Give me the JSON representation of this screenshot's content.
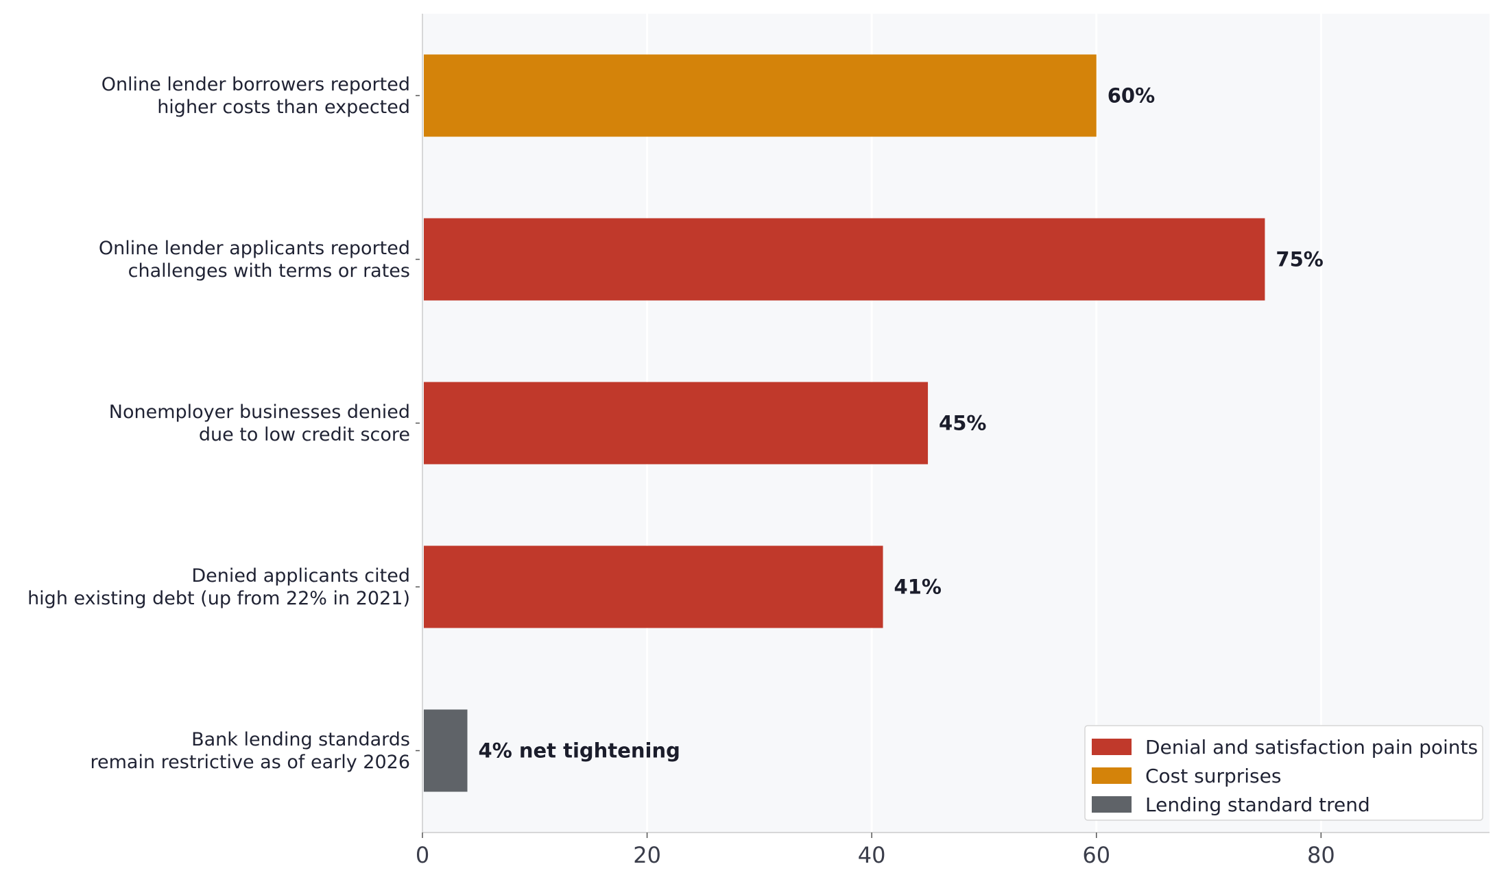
{
  "chart_data": {
    "type": "bar",
    "orientation": "horizontal",
    "categories": [
      [
        "Online lender borrowers reported",
        "higher costs than expected"
      ],
      [
        "Online lender applicants reported",
        "challenges with terms or rates"
      ],
      [
        "Nonemployer businesses denied",
        "due to low credit score"
      ],
      [
        "Denied applicants cited",
        "high existing debt (up from 22% in 2021)"
      ],
      [
        "Bank lending standards",
        "remain restrictive as of early 2026"
      ]
    ],
    "values": [
      60,
      75,
      45,
      41,
      4
    ],
    "value_labels": [
      "60%",
      "75%",
      "45%",
      "41%",
      "4% net tightening"
    ],
    "groups": [
      "Cost surprises",
      "Denial and satisfaction pain points",
      "Denial and satisfaction pain points",
      "Denial and satisfaction pain points",
      "Lending standard trend"
    ],
    "xlim": [
      0,
      95
    ],
    "xticks": [
      0,
      20,
      40,
      60,
      80
    ],
    "xlabel": "",
    "ylabel": "",
    "title": "",
    "grid": "vertical",
    "legend": {
      "placement": "bottom-right",
      "entries": [
        {
          "label": "Denial and satisfaction pain points",
          "color": "#c0392b"
        },
        {
          "label": "Cost surprises",
          "color": "#d4830a"
        },
        {
          "label": "Lending standard trend",
          "color": "#5f6368"
        }
      ]
    },
    "colors": {
      "plot_background": "#f7f8fa",
      "gridline": "#ffffff",
      "axis": "#cccccc"
    }
  }
}
